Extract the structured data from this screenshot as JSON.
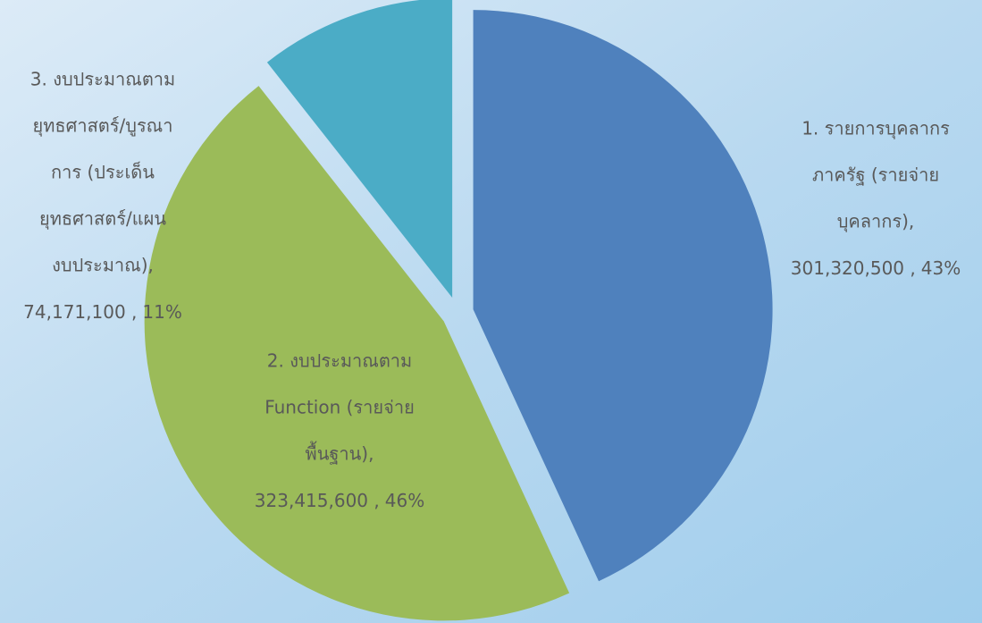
{
  "chart_data": {
    "type": "pie",
    "categories": [
      [
        "1. รายการบุคลากร",
        "ภาครัฐ (รายจ่าย",
        "บุคลากร),"
      ],
      [
        "2. งบประมาณตาม",
        "Function (รายจ่าย",
        "พื้นฐาน),"
      ],
      [
        "3. งบประมาณตาม",
        "ยุทธศาสตร์/บูรณา",
        "การ (ประเด็น",
        "ยุทธศาสตร์/แผน",
        "งบประมาณ),"
      ]
    ],
    "values": [
      301320500,
      323415600,
      74171100
    ],
    "value_labels": [
      "301,320,500 ,",
      "323,415,600 ,",
      "74,171,100 ,"
    ],
    "percents": [
      43,
      46,
      11
    ],
    "percent_labels": [
      "43%",
      "46%",
      "11%"
    ],
    "colors": [
      "#4f81bd",
      "#9bbb59",
      "#4bacc6"
    ]
  }
}
